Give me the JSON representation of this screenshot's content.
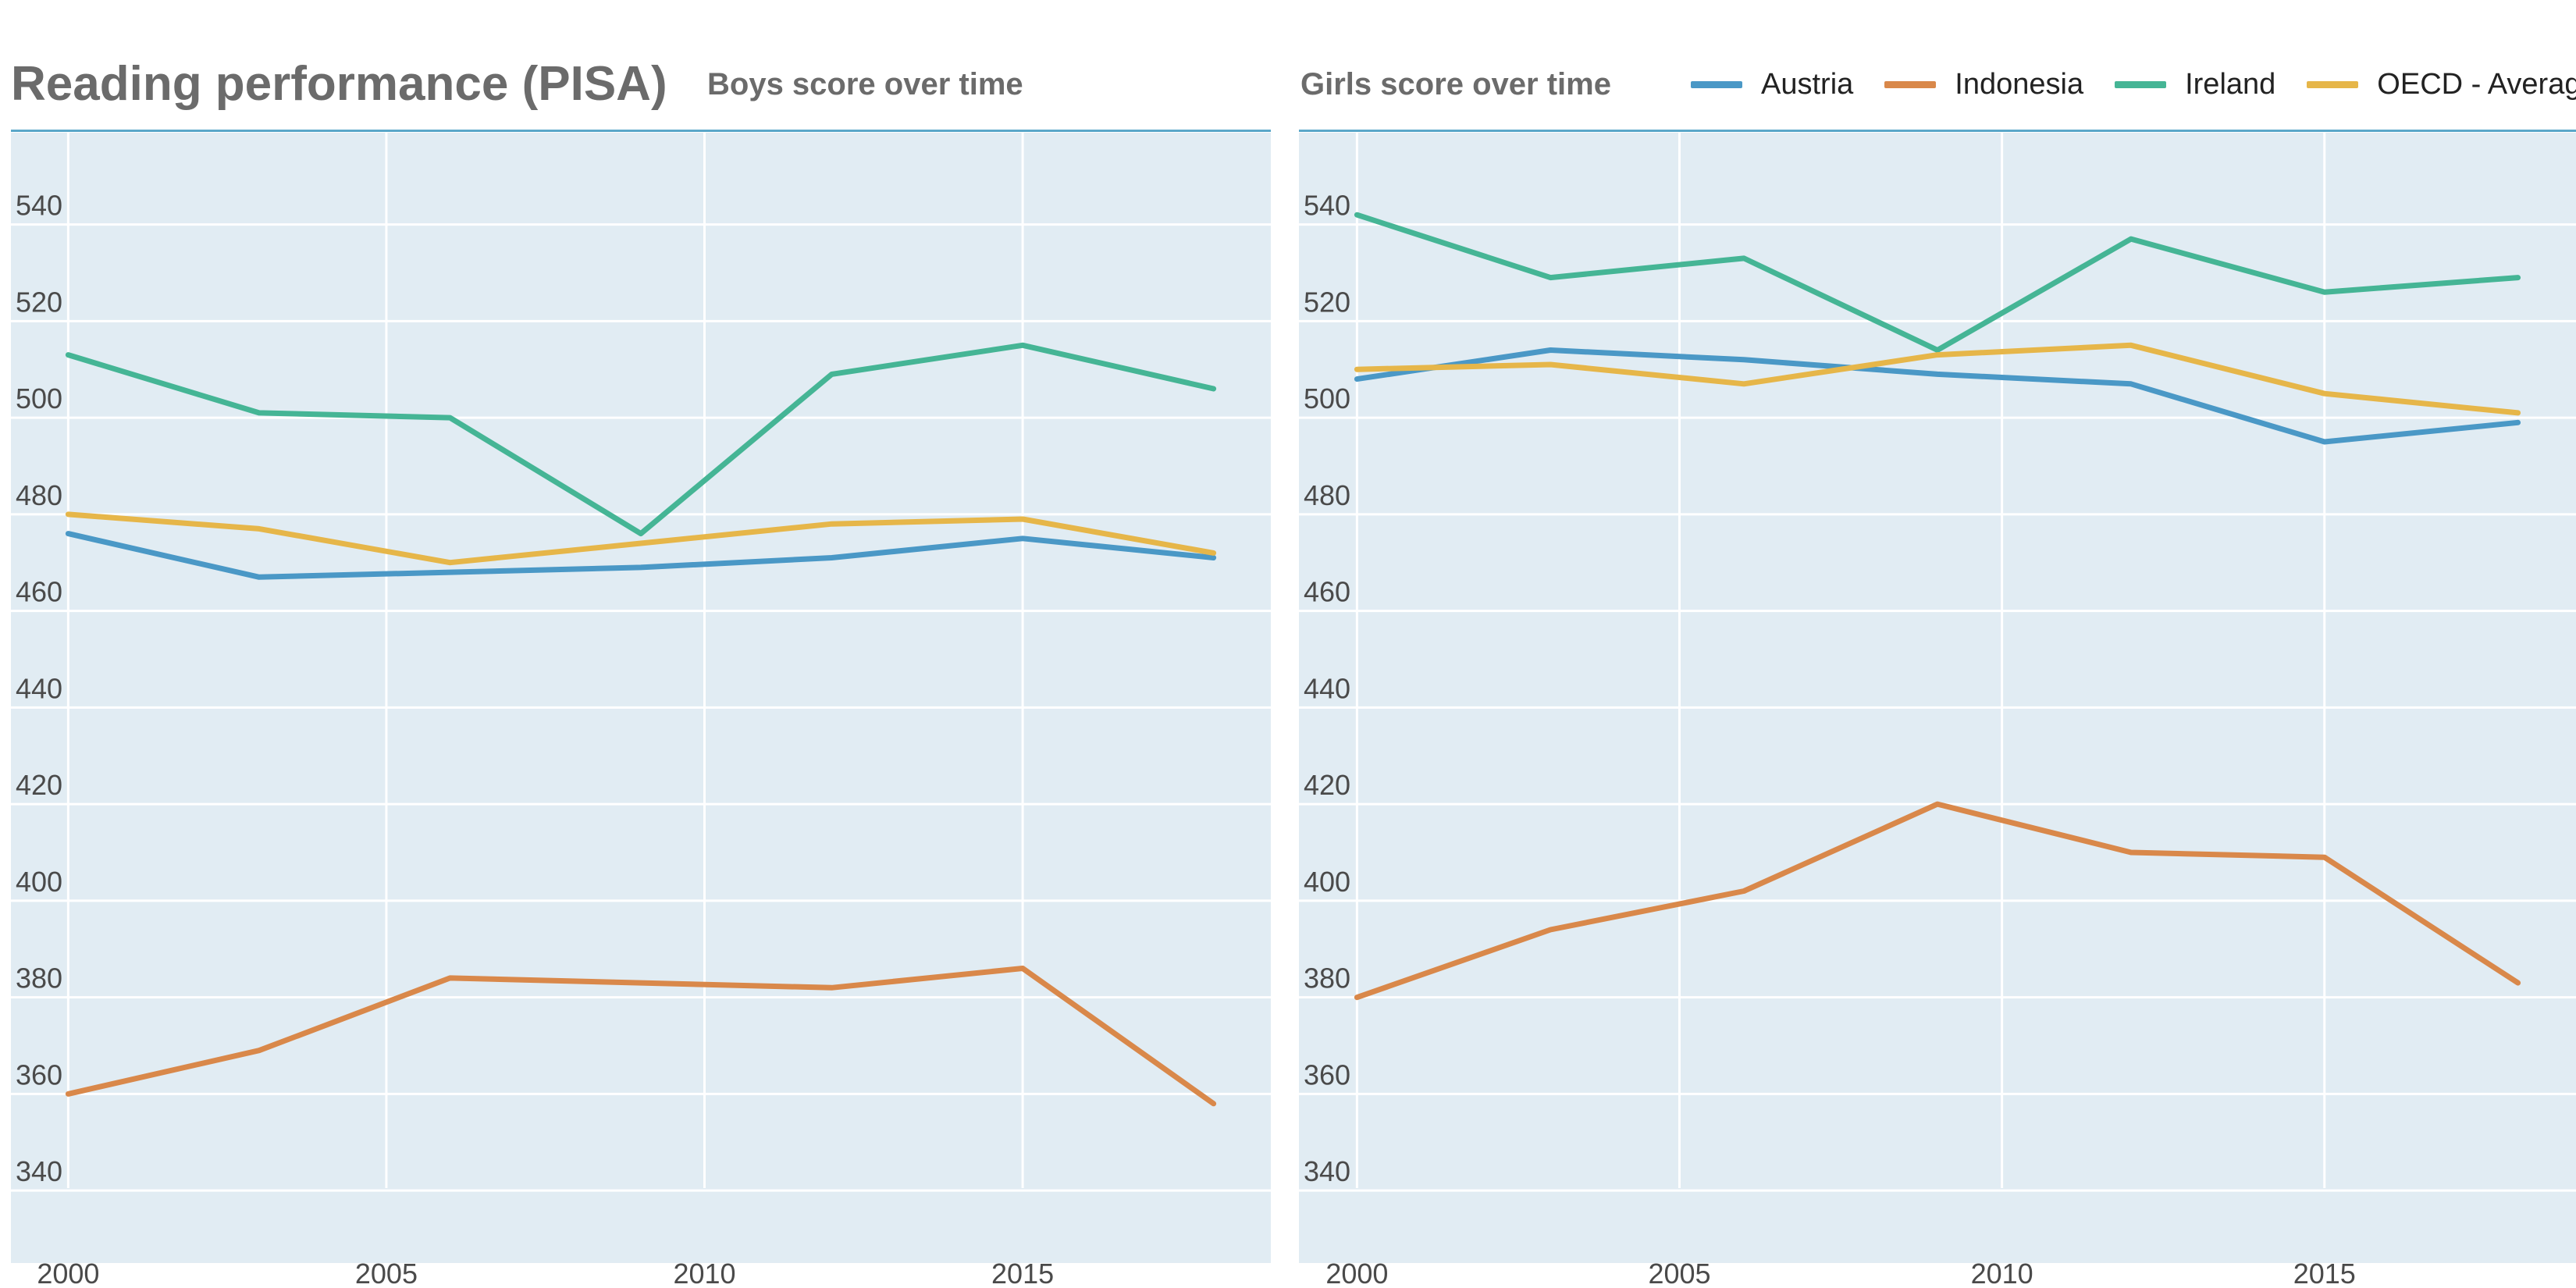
{
  "header": {
    "title": "Reading performance (PISA)"
  },
  "colors": {
    "title": "#6b6b6b",
    "panel_bg": "#e1ecf3",
    "grid": "#ffffff",
    "rule": "#5aa7c9",
    "Austria": "#4a98c6",
    "Indonesia": "#d9884a",
    "Ireland": "#45b595",
    "OECD - Average": "#e6b649"
  },
  "legend": {
    "items": [
      {
        "label": "Austria",
        "color": "#4a98c6"
      },
      {
        "label": "Indonesia",
        "color": "#d9884a"
      },
      {
        "label": "Ireland",
        "color": "#45b595"
      },
      {
        "label": "OECD - Average",
        "color": "#e6b649"
      }
    ]
  },
  "chart_data": [
    {
      "type": "line",
      "title": "Boys score over time",
      "x": [
        2000,
        2003,
        2006,
        2009,
        2012,
        2015,
        2018
      ],
      "xticks": [
        2000,
        2005,
        2010,
        2015
      ],
      "yticks": [
        340,
        360,
        380,
        400,
        420,
        440,
        460,
        480,
        500,
        520,
        540
      ],
      "xlim": [
        1999.1,
        2018.9
      ],
      "ylim": [
        325,
        559
      ],
      "grid": true,
      "series": [
        {
          "name": "Austria",
          "values": [
            476,
            467,
            468,
            469,
            471,
            475,
            471
          ]
        },
        {
          "name": "Indonesia",
          "values": [
            360,
            369,
            384,
            383,
            382,
            386,
            358
          ]
        },
        {
          "name": "Ireland",
          "values": [
            513,
            501,
            500,
            476,
            509,
            515,
            506
          ]
        },
        {
          "name": "OECD - Average",
          "values": [
            480,
            477,
            470,
            474,
            478,
            479,
            472
          ]
        }
      ]
    },
    {
      "type": "line",
      "title": "Girls score over time",
      "x": [
        2000,
        2003,
        2006,
        2009,
        2012,
        2015,
        2018
      ],
      "xticks": [
        2000,
        2005,
        2010,
        2015
      ],
      "yticks": [
        340,
        360,
        380,
        400,
        420,
        440,
        460,
        480,
        500,
        520,
        540
      ],
      "xlim": [
        1999.1,
        2018.9
      ],
      "ylim": [
        325,
        559
      ],
      "grid": true,
      "series": [
        {
          "name": "Austria",
          "values": [
            508,
            514,
            512,
            509,
            507,
            495,
            499
          ]
        },
        {
          "name": "Indonesia",
          "values": [
            380,
            394,
            402,
            420,
            410,
            409,
            383
          ]
        },
        {
          "name": "Ireland",
          "values": [
            542,
            529,
            533,
            514,
            537,
            526,
            529
          ]
        },
        {
          "name": "OECD - Average",
          "values": [
            510,
            511,
            507,
            513,
            515,
            505,
            501
          ]
        }
      ]
    }
  ]
}
